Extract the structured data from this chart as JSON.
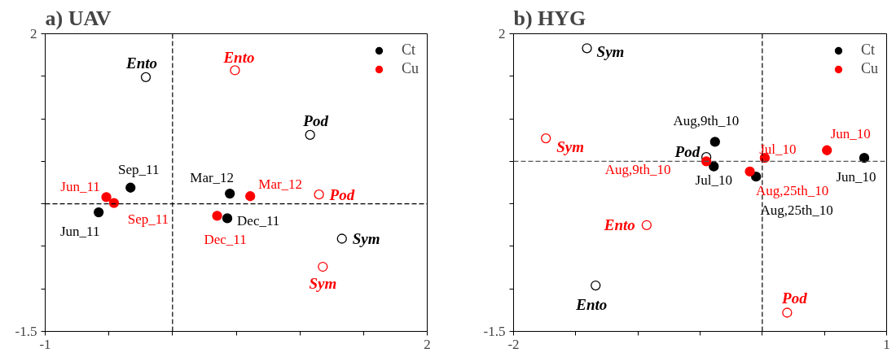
{
  "chart_data": [
    {
      "type": "scatter",
      "title": "a) UAV",
      "xlim": [
        -1,
        2
      ],
      "ylim": [
        -1.5,
        2
      ],
      "xticks": [
        -1,
        {
          "value": -0.5,
          "label": null
        },
        {
          "value": 0,
          "label": null
        },
        {
          "value": 0.5,
          "label": null
        },
        {
          "value": 1,
          "label": null
        },
        {
          "value": 1.5,
          "label": null
        },
        2
      ],
      "yticks": [
        -1.5,
        {
          "value": -1,
          "label": null
        },
        {
          "value": -0.5,
          "label": null
        },
        {
          "value": 0,
          "label": null
        },
        {
          "value": 0.5,
          "label": null
        },
        {
          "value": 1,
          "label": null
        },
        {
          "value": 1.5,
          "label": null
        },
        2
      ],
      "grid": false,
      "legend": "top right",
      "marker": "circle",
      "series": [
        {
          "name": "Ct",
          "color": "#000000",
          "x": [
            -0.33,
            -0.58,
            0.45,
            0.43
          ],
          "values": [
            0.19,
            -0.1,
            0.12,
            -0.17
          ]
        },
        {
          "name": "Cu",
          "color": "#ff0000",
          "x": [
            -0.52,
            -0.46,
            0.61,
            0.35
          ],
          "values": [
            0.08,
            0.01,
            0.09,
            -0.14
          ]
        },
        {
          "color": "#000000",
          "x": [
            -0.21,
            1.08,
            1.33
          ],
          "values": [
            1.49,
            0.81,
            -0.41
          ]
        },
        {
          "color": "#ff0000",
          "x": [
            0.49,
            1.15,
            1.18
          ],
          "values": [
            1.57,
            0.11,
            -0.74
          ]
        }
      ],
      "ref_lines": [
        {
          "axis": "x",
          "value": 0,
          "color": "#000000",
          "line_style": "dashed"
        },
        {
          "axis": "y",
          "value": 0,
          "color": "#000000",
          "line_style": "dashed"
        }
      ],
      "annotations": [
        {
          "text": "Sep_11",
          "x": -0.33,
          "y": 0.19
        },
        {
          "text": "Jun_11",
          "x": -0.58,
          "y": -0.1
        },
        {
          "text": "Mar_12",
          "x": 0.45,
          "y": 0.12
        },
        {
          "text": "Dec_11",
          "x": 0.43,
          "y": -0.17
        },
        {
          "text": "Jun_11",
          "x": -0.52,
          "y": 0.08
        },
        {
          "text": "Sep_11",
          "x": -0.46,
          "y": 0.01
        },
        {
          "text": "Mar_12",
          "x": 0.61,
          "y": 0.09
        },
        {
          "text": "Dec_11",
          "x": 0.35,
          "y": -0.14
        },
        {
          "text": "Ento",
          "x": -0.21,
          "y": 1.49
        },
        {
          "text": "Pod",
          "x": 1.08,
          "y": 0.81
        },
        {
          "text": "Sym",
          "x": 1.33,
          "y": -0.41
        },
        {
          "text": "Ento",
          "x": 0.49,
          "y": 1.57
        },
        {
          "text": "Pod",
          "x": 1.15,
          "y": 0.11
        },
        {
          "text": "Sym",
          "x": 1.18,
          "y": -0.74
        }
      ]
    },
    {
      "type": "scatter",
      "title": "b) HYG",
      "xlim": [
        -2,
        1
      ],
      "ylim": [
        -1.5,
        2
      ],
      "xticks": [
        -2,
        {
          "value": -1.5,
          "label": null
        },
        {
          "value": -1,
          "label": null
        },
        {
          "value": -0.5,
          "label": null
        },
        {
          "value": 0,
          "label": null
        },
        {
          "value": 0.5,
          "label": null
        },
        1
      ],
      "yticks": [
        -1.5,
        {
          "value": -1,
          "label": null
        },
        {
          "value": -0.5,
          "label": null
        },
        {
          "value": 0,
          "label": null
        },
        {
          "value": 0.5,
          "label": null
        },
        {
          "value": 1,
          "label": null
        },
        {
          "value": 1.5,
          "label": null
        },
        2
      ],
      "grid": false,
      "legend": "top right",
      "marker": "circle",
      "series": [
        {
          "name": "Ct",
          "color": "#000000",
          "x": [
            -0.38,
            -0.39,
            -0.05,
            0.82
          ],
          "values": [
            0.73,
            0.44,
            0.32,
            0.54
          ]
        },
        {
          "name": "Cu",
          "color": "#ff0000",
          "x": [
            -0.45,
            0.02,
            0.52,
            -0.1
          ],
          "values": [
            0.5,
            0.54,
            0.63,
            0.38
          ]
        },
        {
          "color": "#000000",
          "x": [
            -1.41,
            -0.45,
            -1.34
          ],
          "values": [
            1.83,
            0.55,
            -0.96
          ]
        },
        {
          "color": "#ff0000",
          "x": [
            -1.74,
            -0.93,
            0.2
          ],
          "values": [
            0.77,
            -0.25,
            -1.28
          ]
        }
      ],
      "ref_lines": [
        {
          "axis": "x",
          "value": 0,
          "color": "#000000",
          "line_style": "dashed"
        },
        {
          "axis": "y",
          "value": 0.5,
          "color": "#555555",
          "line_style": "dashed"
        }
      ],
      "annotations": [
        {
          "text": "Aug,9th_10",
          "x": -0.38,
          "y": 0.73
        },
        {
          "text": "Jul_10",
          "x": -0.39,
          "y": 0.44
        },
        {
          "text": "Aug,25th_10",
          "x": -0.05,
          "y": 0.32
        },
        {
          "text": "Jun_10",
          "x": 0.82,
          "y": 0.54
        },
        {
          "text": "Aug,9th_10",
          "x": -0.45,
          "y": 0.5
        },
        {
          "text": "Jul_10",
          "x": 0.02,
          "y": 0.54
        },
        {
          "text": "Jun_10",
          "x": 0.52,
          "y": 0.63
        },
        {
          "text": "Aug,25th_10",
          "x": -0.1,
          "y": 0.38
        },
        {
          "text": "Sym",
          "x": -1.41,
          "y": 1.83
        },
        {
          "text": "Pod",
          "x": -0.45,
          "y": 0.55
        },
        {
          "text": "Ento",
          "x": -1.34,
          "y": -0.96
        },
        {
          "text": "Sym",
          "x": -1.74,
          "y": 0.77
        },
        {
          "text": "Ento",
          "x": -0.93,
          "y": -0.25
        },
        {
          "text": "Pod",
          "x": 0.2,
          "y": -1.28
        }
      ]
    }
  ]
}
